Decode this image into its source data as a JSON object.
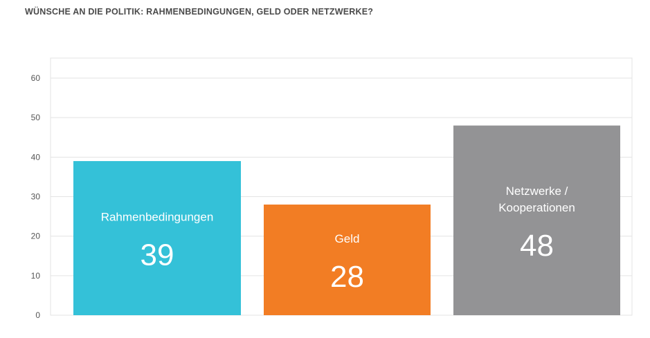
{
  "chart_data": {
    "type": "bar",
    "title": "WÜNSCHE AN DIE POLITIK: RAHMENBEDINGUNGEN, GELD ODER NETZWERKE?",
    "categories": [
      {
        "label_lines": [
          "Rahmenbedingungen"
        ],
        "value": 39,
        "display_value": "39",
        "color": "#34c1d8"
      },
      {
        "label_lines": [
          "Geld"
        ],
        "value": 28,
        "display_value": "28",
        "color": "#f27d24"
      },
      {
        "label_lines": [
          "Netzwerke /",
          "Kooperationen"
        ],
        "value": 48,
        "display_value": "48",
        "color": "#939395"
      }
    ],
    "yticks": [
      "0",
      "10",
      "20",
      "30",
      "40",
      "50",
      "60"
    ],
    "ylim": [
      0,
      60
    ],
    "xlabel": "",
    "ylabel": "",
    "grid": true
  }
}
